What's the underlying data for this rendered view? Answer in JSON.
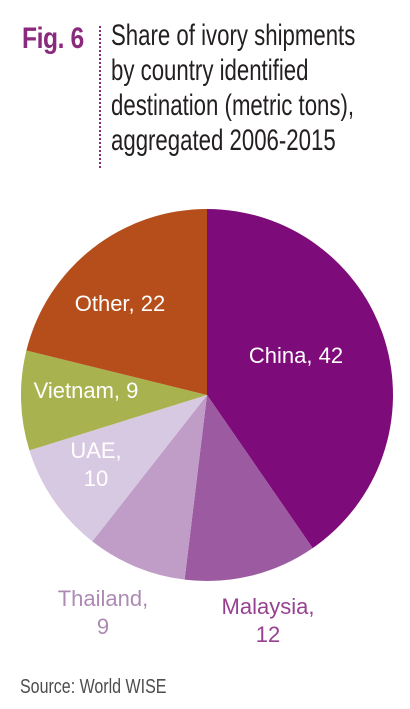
{
  "figure": {
    "label": "Fig. 6",
    "title_lines": [
      "Share of ivory shipments",
      "by country identified",
      "destination (metric tons),",
      "aggregated 2006-2015"
    ],
    "source": "Source: World WISE"
  },
  "colors": {
    "accent": "#8b2a7d"
  },
  "chart_data": {
    "type": "pie",
    "title": "Share of ivory shipments by country identified destination (metric tons), aggregated 2006-2015",
    "unit": "metric tons",
    "slices": [
      {
        "name": "China",
        "value": 42,
        "label_lines": [
          "China, 42"
        ],
        "color": "#7e0b7a",
        "label_color": "#ffffff"
      },
      {
        "name": "Malaysia",
        "value": 12,
        "label_lines": [
          "Malaysia,",
          "12"
        ],
        "color": "#9c5aa0",
        "label_color": "#96418f"
      },
      {
        "name": "Thailand",
        "value": 9,
        "label_lines": [
          "Thailand,",
          "9"
        ],
        "color": "#c09dc6",
        "label_color": "#ad8ab4"
      },
      {
        "name": "UAE",
        "value": 10,
        "label_lines": [
          "UAE,",
          "10"
        ],
        "color": "#d8c9e2",
        "label_color": "#ffffff"
      },
      {
        "name": "Vietnam",
        "value": 9,
        "label_lines": [
          "Vietnam, 9"
        ],
        "color": "#a8b24f",
        "label_color": "#ffffff"
      },
      {
        "name": "Other",
        "value": 22,
        "label_lines": [
          "Other, 22"
        ],
        "color": "#b54e1a",
        "label_color": "#ffffff"
      }
    ]
  }
}
